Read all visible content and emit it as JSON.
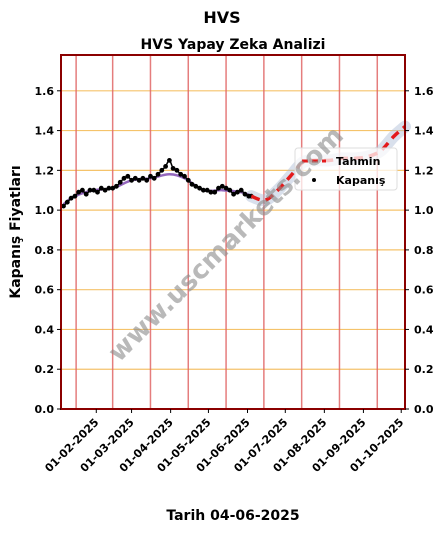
{
  "chart_data": {
    "type": "line",
    "title": "HVS",
    "subtitle": "HVS Yapay Zeka Analizi",
    "xlabel": "Tarih 04-06-2025",
    "ylabel": "Kapanış Fiyatları",
    "ylim": [
      0.0,
      1.78
    ],
    "yticks": [
      0.0,
      0.2,
      0.4,
      0.6,
      0.8,
      1.0,
      1.2,
      1.4,
      1.6
    ],
    "ytick_labels": [
      "0.0",
      "0.2",
      "0.4",
      "0.6",
      "0.8",
      "1.0",
      "1.2",
      "1.4",
      "1.6"
    ],
    "xlim": [
      "2025-01-04",
      "2025-10-04"
    ],
    "xticks": [
      "2025-02-01",
      "2025-03-01",
      "2025-04-01",
      "2025-05-01",
      "2025-06-01",
      "2025-07-01",
      "2025-08-01",
      "2025-09-01",
      "2025-10-01"
    ],
    "xtick_labels": [
      "01-02-2025",
      "01-03-2025",
      "01-04-2025",
      "01-05-2025",
      "01-06-2025",
      "01-07-2025",
      "01-08-2025",
      "01-09-2025",
      "01-10-2025"
    ],
    "vlines": [
      "2025-01-16",
      "2025-02-14",
      "2025-03-16",
      "2025-04-15",
      "2025-05-15",
      "2025-06-14",
      "2025-07-14",
      "2025-08-13",
      "2025-09-12"
    ],
    "grid": "horizontal",
    "legend_position": "right",
    "watermark": "www.uscmarkets.com",
    "series": [
      {
        "name": "Kapanış",
        "kind": "scatter",
        "color": "#000000",
        "x": [
          "2025-01-06",
          "2025-01-09",
          "2025-01-12",
          "2025-01-15",
          "2025-01-18",
          "2025-01-21",
          "2025-01-24",
          "2025-01-27",
          "2025-01-30",
          "2025-02-02",
          "2025-02-05",
          "2025-02-08",
          "2025-02-11",
          "2025-02-14",
          "2025-02-17",
          "2025-02-20",
          "2025-02-23",
          "2025-02-26",
          "2025-03-01",
          "2025-03-04",
          "2025-03-07",
          "2025-03-10",
          "2025-03-13",
          "2025-03-16",
          "2025-03-19",
          "2025-03-22",
          "2025-03-25",
          "2025-03-28",
          "2025-03-31",
          "2025-04-03",
          "2025-04-06",
          "2025-04-09",
          "2025-04-12",
          "2025-04-15",
          "2025-04-18",
          "2025-04-21",
          "2025-04-24",
          "2025-04-27",
          "2025-04-30",
          "2025-05-03",
          "2025-05-06",
          "2025-05-09",
          "2025-05-12",
          "2025-05-15",
          "2025-05-18",
          "2025-05-21",
          "2025-05-24",
          "2025-05-27",
          "2025-05-30",
          "2025-06-02",
          "2025-06-04"
        ],
        "y": [
          1.02,
          1.04,
          1.06,
          1.07,
          1.09,
          1.1,
          1.08,
          1.1,
          1.1,
          1.09,
          1.11,
          1.1,
          1.11,
          1.11,
          1.12,
          1.14,
          1.16,
          1.17,
          1.15,
          1.16,
          1.15,
          1.16,
          1.15,
          1.17,
          1.16,
          1.18,
          1.2,
          1.22,
          1.25,
          1.21,
          1.2,
          1.18,
          1.17,
          1.15,
          1.13,
          1.12,
          1.11,
          1.1,
          1.1,
          1.09,
          1.09,
          1.11,
          1.12,
          1.11,
          1.1,
          1.08,
          1.09,
          1.1,
          1.08,
          1.07,
          1.07
        ]
      },
      {
        "kind": "line",
        "color": "#9467bd",
        "x": [
          "2025-01-06",
          "2025-01-15",
          "2025-01-30",
          "2025-02-14",
          "2025-03-01",
          "2025-03-16",
          "2025-03-31",
          "2025-04-12",
          "2025-04-27",
          "2025-05-12",
          "2025-05-27",
          "2025-06-04"
        ],
        "y": [
          1.03,
          1.07,
          1.1,
          1.11,
          1.15,
          1.16,
          1.18,
          1.16,
          1.1,
          1.1,
          1.09,
          1.07
        ]
      },
      {
        "name": "Tahmin",
        "kind": "line",
        "style": "dashed",
        "color": "#e41a1c",
        "band_color": "#aabbd4",
        "x": [
          "2025-06-04",
          "2025-06-15",
          "2025-06-25",
          "2025-07-05",
          "2025-07-15",
          "2025-07-25",
          "2025-08-05",
          "2025-08-15",
          "2025-08-25",
          "2025-09-05",
          "2025-09-15",
          "2025-09-25",
          "2025-10-04"
        ],
        "y": [
          1.07,
          1.05,
          1.1,
          1.17,
          1.24,
          1.25,
          1.25,
          1.26,
          1.26,
          1.27,
          1.3,
          1.37,
          1.42
        ]
      }
    ]
  }
}
